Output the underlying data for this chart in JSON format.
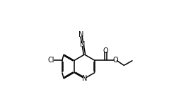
{
  "bg_color": "#ffffff",
  "line_color": "#000000",
  "lw": 1.1,
  "fs": 7.0,
  "figsize": [
    2.39,
    1.37
  ],
  "dpi": 100,
  "xlim": [
    -0.5,
    10.5
  ],
  "ylim": [
    -0.5,
    7.5
  ]
}
